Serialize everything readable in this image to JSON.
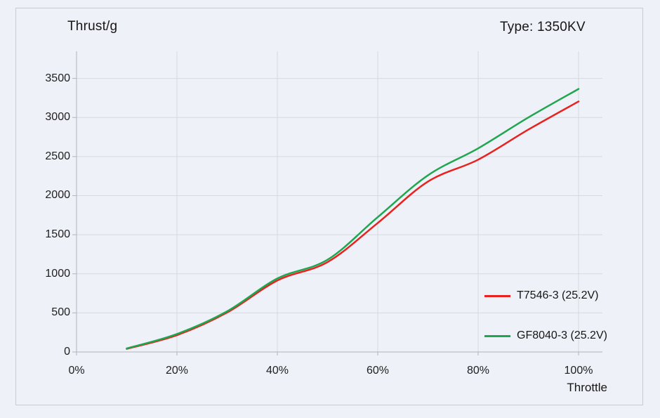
{
  "header": {
    "title": "Thrust/g",
    "type_label": "Type: 1350KV"
  },
  "colors": {
    "background": "#eef1f7",
    "frame_border": "#c8cbd1",
    "gridline": "#d6d9de",
    "axis": "#b0b4b9",
    "text": "#1b1b1b",
    "series_red": "#e8231f",
    "series_green": "#1fa650"
  },
  "chart_data": {
    "type": "line",
    "title": "Thrust/g",
    "xlabel": "Throttle",
    "ylabel": "Thrust/g",
    "annotation": "Type: 1350KV",
    "x_unit": "% throttle",
    "y_unit": "g",
    "x": [
      10,
      20,
      30,
      40,
      50,
      60,
      70,
      80,
      90,
      100
    ],
    "series": [
      {
        "name": "T7546-3 (25.2V)",
        "color": "#e8231f",
        "values": [
          40,
          215,
          505,
          915,
          1150,
          1650,
          2180,
          2460,
          2845,
          3205
        ]
      },
      {
        "name": "GF8040-3 (25.2V)",
        "color": "#1fa650",
        "values": [
          45,
          230,
          520,
          940,
          1180,
          1725,
          2260,
          2605,
          3000,
          3365
        ]
      }
    ],
    "xticks": [
      0,
      20,
      40,
      60,
      80,
      100
    ],
    "xtick_labels": [
      "0%",
      "20%",
      "40%",
      "60%",
      "80%",
      "100%"
    ],
    "yticks": [
      0,
      500,
      1000,
      1500,
      2000,
      2500,
      3000,
      3500
    ],
    "xlim": [
      0,
      104.8
    ],
    "ylim": [
      0,
      3850
    ],
    "grid": true,
    "legend_position": "bottom-right"
  }
}
